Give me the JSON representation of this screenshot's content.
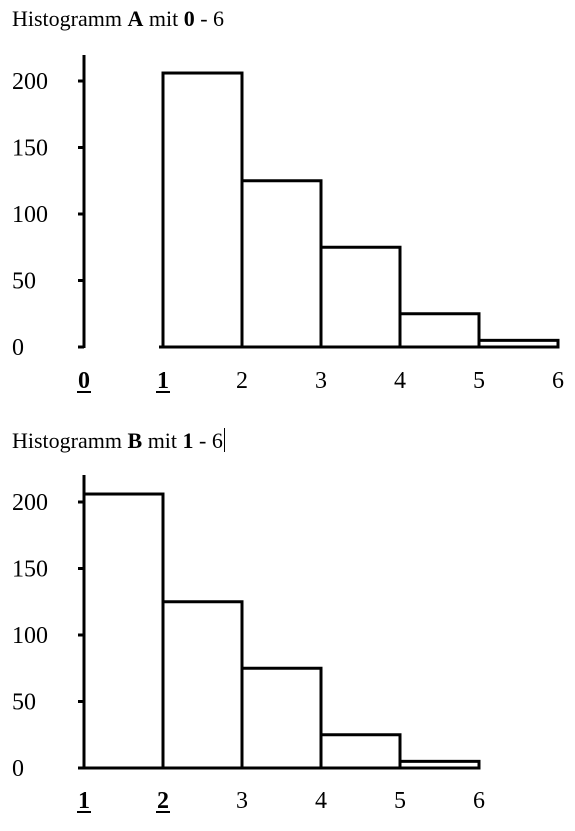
{
  "chart_data": [
    {
      "type": "bar",
      "title_parts": [
        "Histogramm ",
        "A",
        " mit ",
        "0",
        " - 6"
      ],
      "x_ticks": [
        "0",
        "1",
        "2",
        "3",
        "4",
        "5",
        "6"
      ],
      "x_ticks_emphasized": [
        "0",
        "1"
      ],
      "y_ticks": [
        "0",
        "50",
        "100",
        "150",
        "200"
      ],
      "ylim": [
        0,
        200
      ],
      "bins": [
        {
          "from": 1,
          "to": 2,
          "value": 206
        },
        {
          "from": 2,
          "to": 3,
          "value": 125
        },
        {
          "from": 3,
          "to": 4,
          "value": 75
        },
        {
          "from": 4,
          "to": 5,
          "value": 25
        },
        {
          "from": 5,
          "to": 6,
          "value": 5
        }
      ],
      "xlim": [
        0,
        6
      ],
      "xlabel": "",
      "ylabel": ""
    },
    {
      "type": "bar",
      "title_parts": [
        "Histogramm ",
        "B",
        " mit ",
        "1",
        " - 6"
      ],
      "x_ticks": [
        "1",
        "2",
        "3",
        "4",
        "5",
        "6"
      ],
      "x_ticks_emphasized": [
        "1",
        "2"
      ],
      "y_ticks": [
        "0",
        "50",
        "100",
        "150",
        "200"
      ],
      "ylim": [
        0,
        200
      ],
      "bins": [
        {
          "from": 1,
          "to": 2,
          "value": 206
        },
        {
          "from": 2,
          "to": 3,
          "value": 125
        },
        {
          "from": 3,
          "to": 4,
          "value": 75
        },
        {
          "from": 4,
          "to": 5,
          "value": 25
        },
        {
          "from": 5,
          "to": 6,
          "value": 5
        }
      ],
      "xlim": [
        1,
        6
      ],
      "xlabel": "",
      "ylabel": ""
    }
  ]
}
